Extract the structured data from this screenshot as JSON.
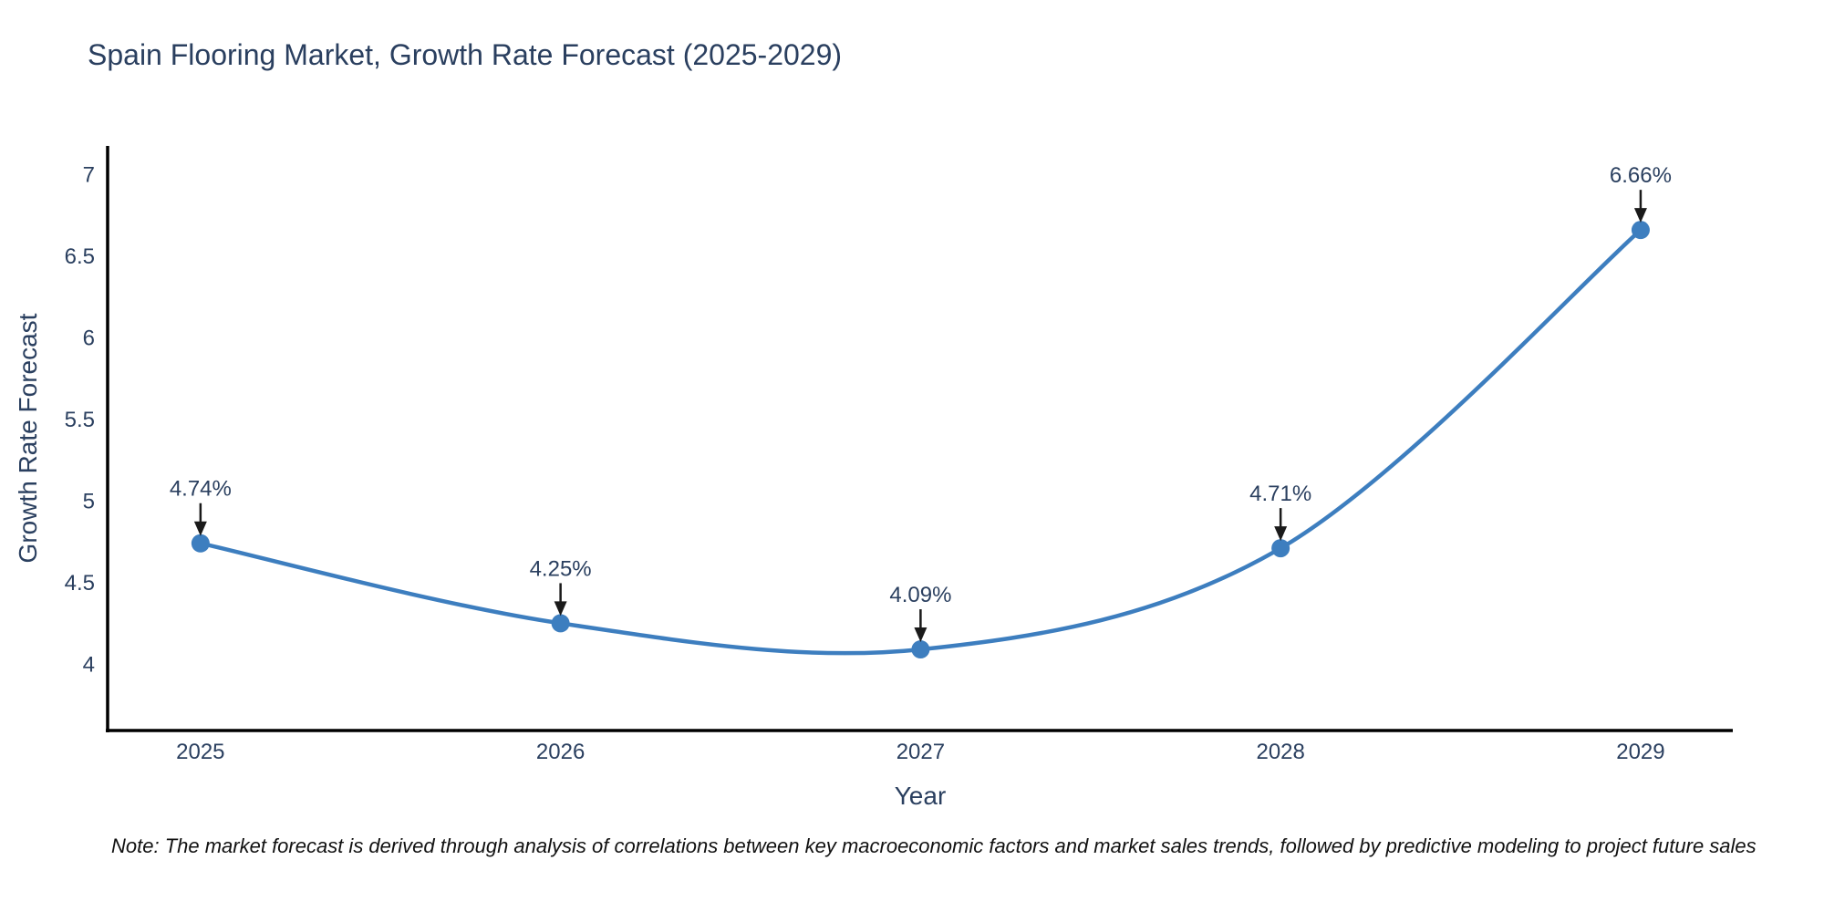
{
  "title": "Spain Flooring Market, Growth Rate Forecast (2025-2029)",
  "note": "Note: The market forecast is derived through analysis of correlations between key macroeconomic factors and market sales trends, followed by predictive modeling to project future sales",
  "chart_data": {
    "type": "line",
    "line_shape": "spline",
    "title": "Spain Flooring Market, Growth Rate Forecast (2025-2029)",
    "xlabel": "Year",
    "ylabel": "Growth Rate Forecast",
    "x": [
      2025,
      2026,
      2027,
      2028,
      2029
    ],
    "y": [
      4.74,
      4.25,
      4.09,
      4.71,
      6.66
    ],
    "point_labels": [
      "4.74%",
      "4.25%",
      "4.09%",
      "4.71%",
      "6.66%"
    ],
    "xtick_labels": [
      "2025",
      "2026",
      "2027",
      "2028",
      "2029"
    ],
    "ytick_values": [
      4,
      4.5,
      5,
      5.5,
      6,
      6.5,
      7
    ],
    "ytick_labels": [
      "4",
      "4.5",
      "5",
      "5.5",
      "6",
      "6.5",
      "7"
    ],
    "x_range": [
      2024.742,
      2029.256
    ],
    "y_range": [
      3.593,
      7.175
    ],
    "grid": false,
    "legend": "none",
    "colors": {
      "line": "#3d7ebf",
      "marker": "#3d7ebf",
      "axis_line": "#000000",
      "text": "#2a3f5f",
      "annotation_text": "#2a3f5f",
      "annotation_arrow": "#1a1a1a",
      "note_text": "#111111"
    }
  }
}
